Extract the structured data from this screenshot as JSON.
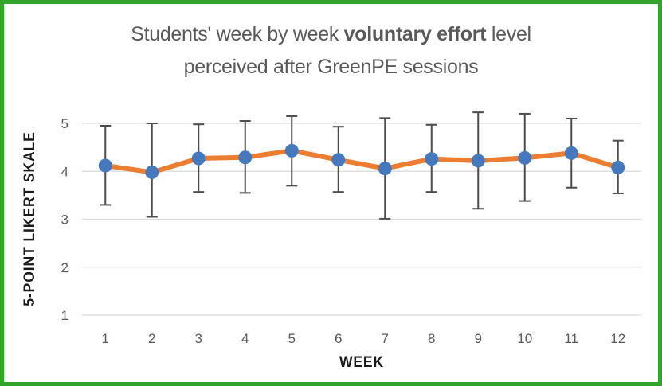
{
  "frame": {
    "border_color": "#32A42A",
    "background": "#ffffff"
  },
  "title": {
    "line1_prefix": "Students' week by week ",
    "line1_bold": "voluntary effort",
    "line1_suffix": " level",
    "line2": "perceived after GreenPE sessions",
    "color": "#595959"
  },
  "chart_data": {
    "type": "line",
    "title": "Students' week by week voluntary effort level perceived after GreenPE sessions",
    "xlabel": "WEEK",
    "ylabel": "5-POINT LIKERT SKALE",
    "categories": [
      1,
      2,
      3,
      4,
      5,
      6,
      7,
      8,
      9,
      10,
      11,
      12
    ],
    "series": [
      {
        "values": [
          4.12,
          3.98,
          4.27,
          4.29,
          4.43,
          4.24,
          4.06,
          4.26,
          4.22,
          4.28,
          4.38,
          4.08
        ],
        "error_low": [
          3.3,
          3.05,
          3.57,
          3.55,
          3.7,
          3.57,
          3.01,
          3.57,
          3.22,
          3.38,
          3.66,
          3.54
        ],
        "error_high": [
          4.95,
          5.0,
          4.98,
          5.05,
          5.15,
          4.93,
          5.11,
          4.97,
          5.23,
          5.2,
          5.1,
          4.64
        ]
      }
    ],
    "ylim": [
      1,
      5
    ],
    "yticks": [
      1,
      2,
      3,
      4,
      5
    ],
    "grid": true,
    "legend": false,
    "colors": {
      "line": "#ED7D31",
      "marker": "#4678BD",
      "error_bar": "#4D4D4D",
      "gridline": "#D9D9D9",
      "tick_label": "#595959"
    }
  }
}
